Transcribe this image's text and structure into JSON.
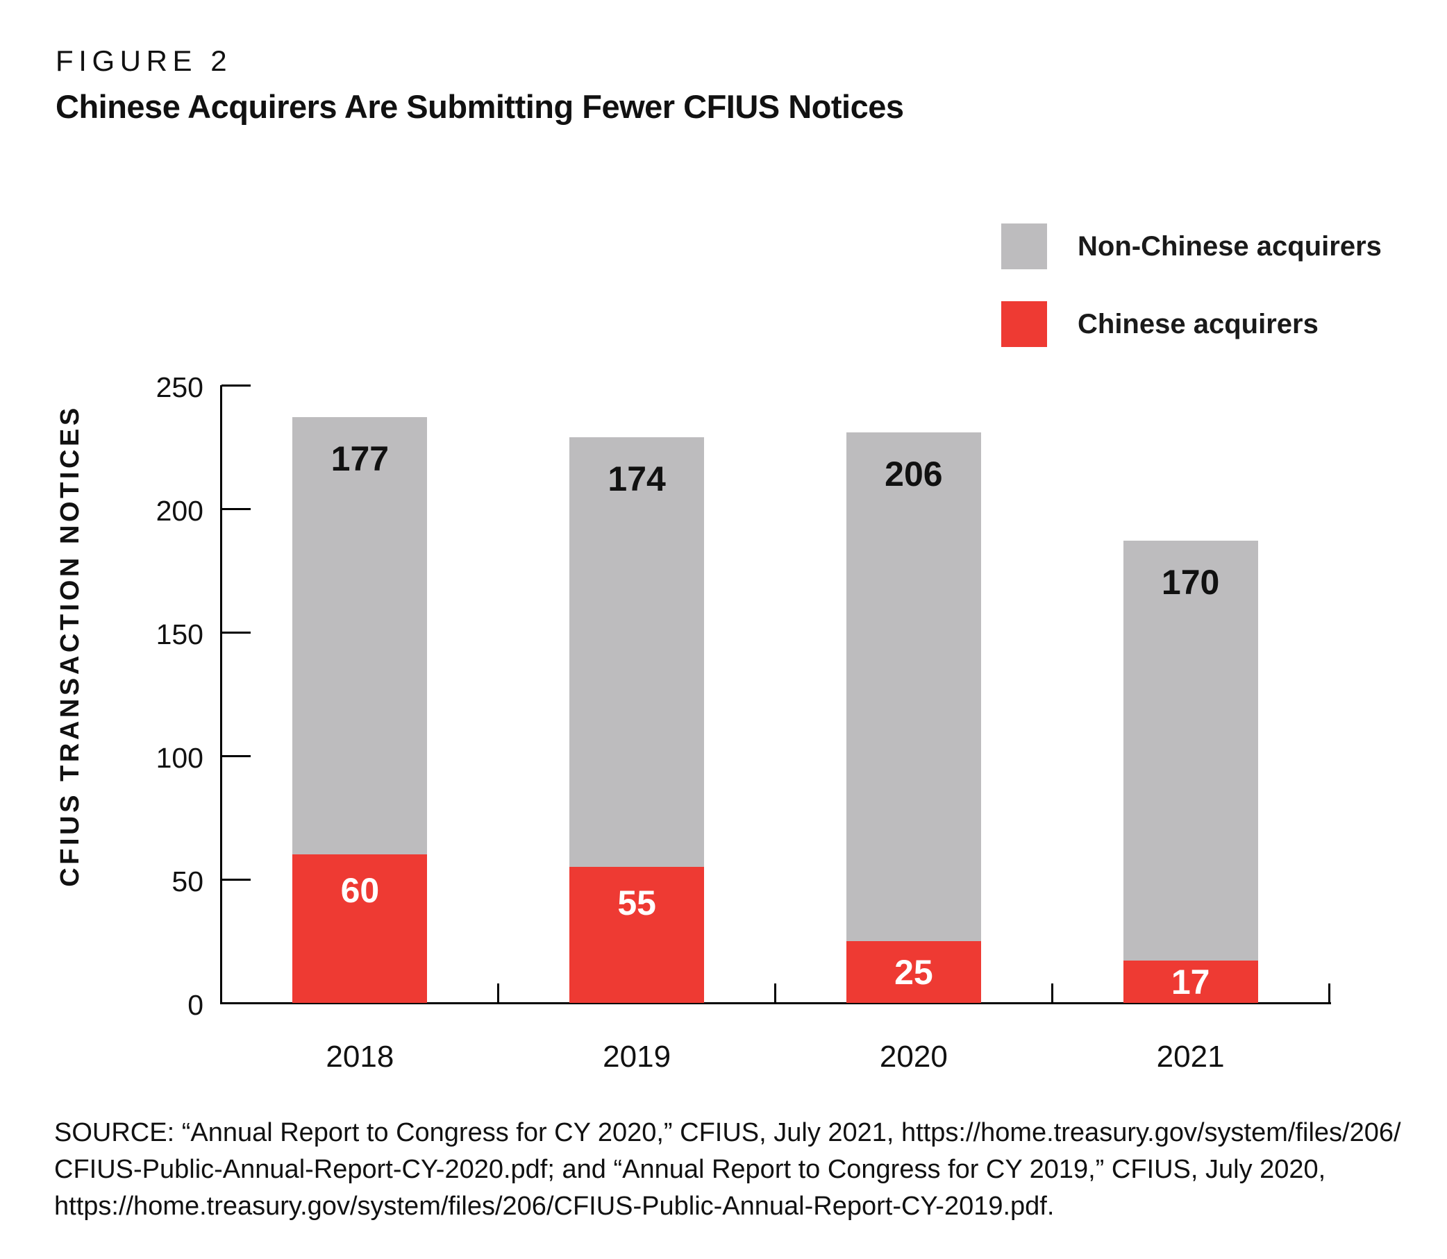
{
  "figure": {
    "label": "FIGURE 2",
    "title": "Chinese Acquirers Are Submitting Fewer CFIUS Notices"
  },
  "legend": {
    "items": [
      {
        "label": "Non-Chinese acquirers",
        "color": "#bdbcbe"
      },
      {
        "label": "Chinese acquirers",
        "color": "#ee3a33"
      }
    ]
  },
  "chart_data": {
    "type": "bar",
    "stacked": true,
    "categories": [
      "2018",
      "2019",
      "2020",
      "2021"
    ],
    "series": [
      {
        "name": "Chinese acquirers",
        "color": "#ee3a33",
        "label_color": "#ffffff",
        "values": [
          60,
          55,
          25,
          17
        ]
      },
      {
        "name": "Non-Chinese acquirers",
        "color": "#bdbcbe",
        "label_color": "#111111",
        "values": [
          177,
          174,
          206,
          170
        ]
      }
    ],
    "totals": [
      237,
      229,
      231,
      187
    ],
    "title": "Chinese Acquirers Are Submitting Fewer CFIUS Notices",
    "xlabel": "",
    "ylabel": "CFIUS TRANSACTION NOTICES",
    "yticks": [
      0,
      50,
      100,
      150,
      200,
      250
    ],
    "ylim": [
      0,
      250
    ],
    "grid": false,
    "legend_position": "top-right"
  },
  "source": {
    "lines": [
      "SOURCE: “Annual Report to Congress for CY 2020,” CFIUS, July 2021, https://home.treasury.gov/system/files/206/",
      "CFIUS-Public-Annual-Report-CY-2020.pdf; and “Annual Report to Congress for CY 2019,” CFIUS, July 2020,",
      "https://home.treasury.gov/system/files/206/CFIUS-Public-Annual-Report-CY-2019.pdf."
    ]
  }
}
